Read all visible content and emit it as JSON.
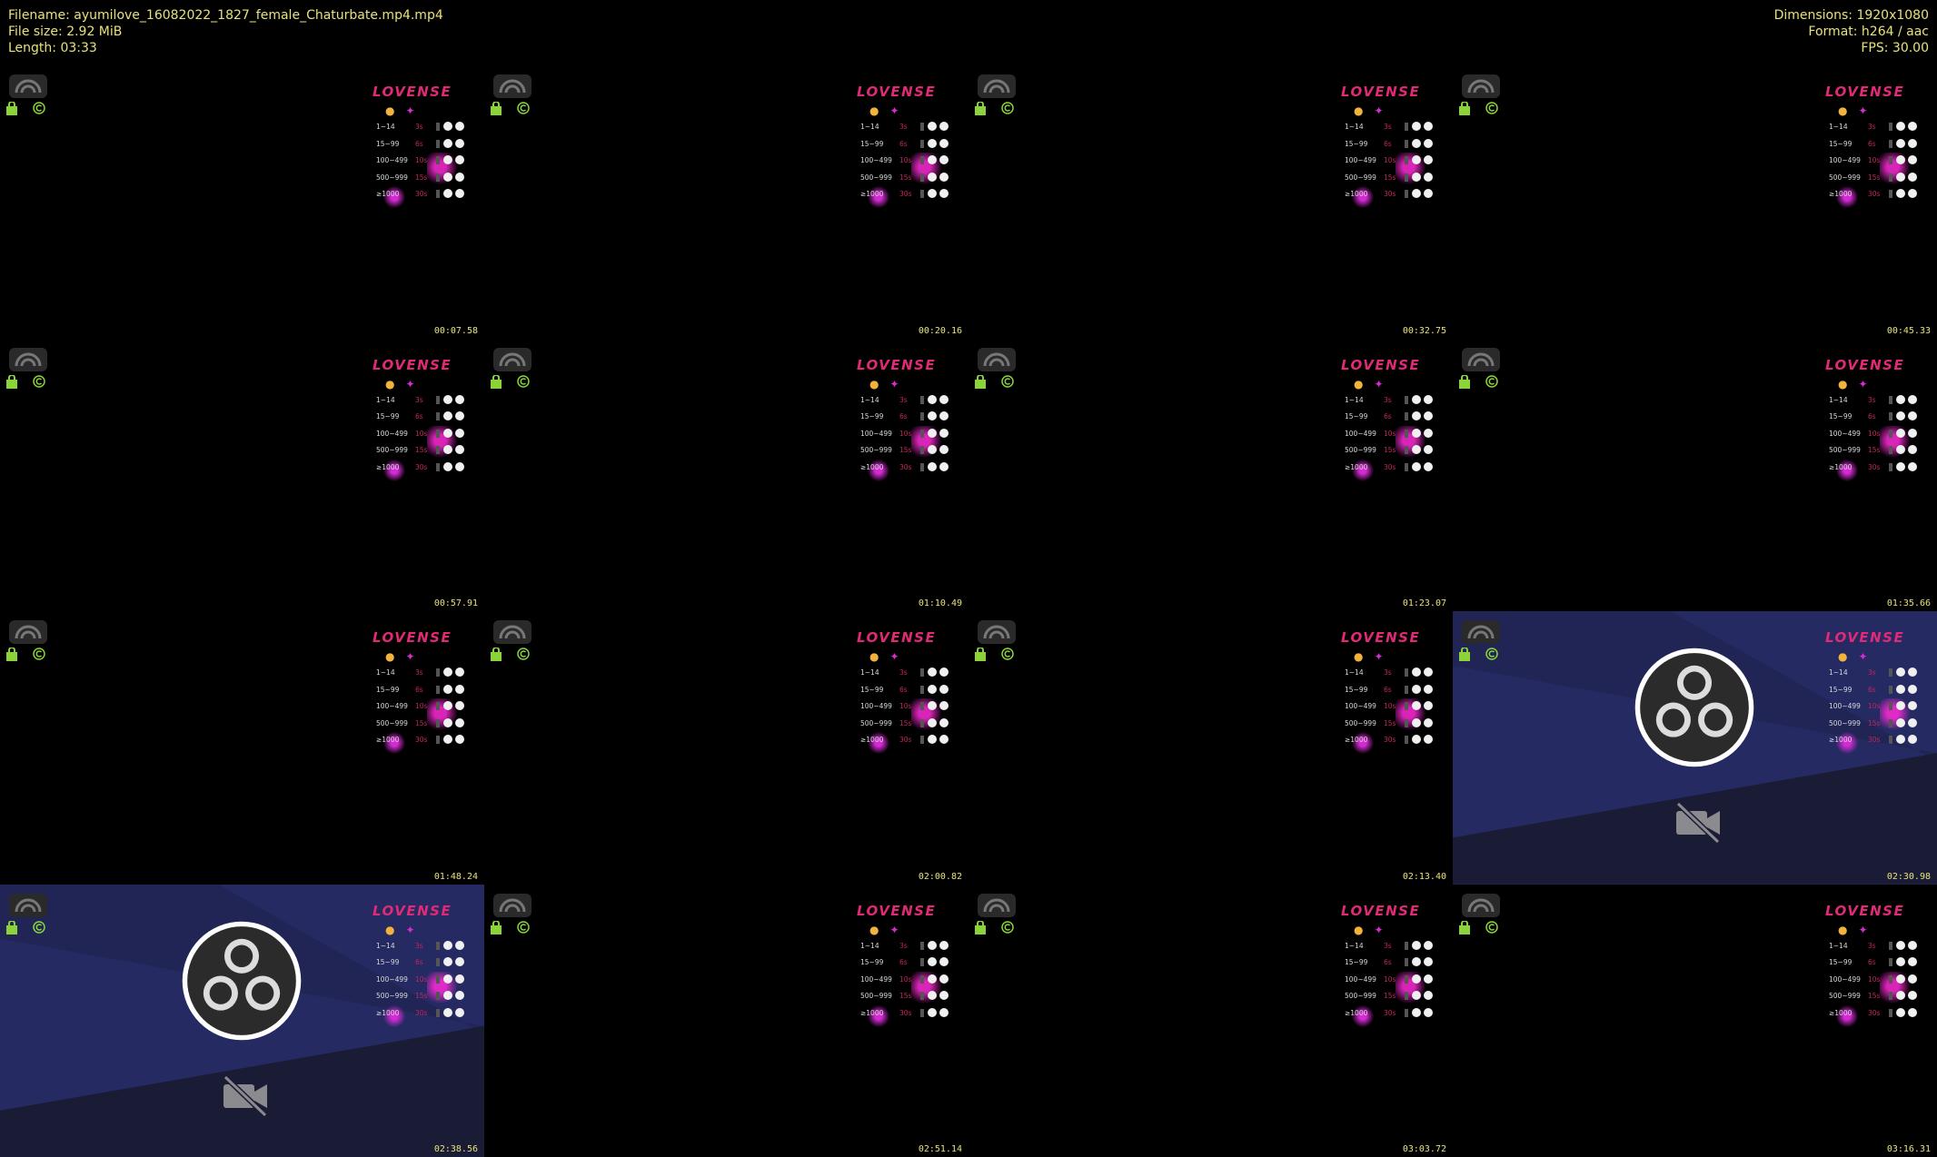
{
  "header": {
    "left": [
      "Filename: ayumilove_16082022_1827_female_Chaturbate.mp4.mp4",
      "File size: 2.92 MiB",
      "Length: 03:33"
    ],
    "right": [
      "Dimensions: 1920x1080",
      "Format: h264 / aac",
      "FPS: 30.00"
    ]
  },
  "colors": {
    "timestamp": "#e8e27a",
    "lovense_pink": "#e02a75",
    "obs_blue": "#252a63",
    "obs_dark": "#1a1b34"
  },
  "lovense": {
    "title": "LOVENSE",
    "levels": [
      {
        "range": "1~14",
        "duration": "3s"
      },
      {
        "range": "15~99",
        "duration": "6s"
      },
      {
        "range": "100~499",
        "duration": "10s"
      },
      {
        "range": "500~999",
        "duration": "15s"
      },
      {
        "range": "≥1000",
        "duration": "30s"
      }
    ]
  },
  "thumbnails": [
    {
      "time": "00:07.58",
      "obs": false
    },
    {
      "time": "00:20.16",
      "obs": false
    },
    {
      "time": "00:32.75",
      "obs": false
    },
    {
      "time": "00:45.33",
      "obs": false
    },
    {
      "time": "00:57.91",
      "obs": false
    },
    {
      "time": "01:10.49",
      "obs": false
    },
    {
      "time": "01:23.07",
      "obs": false
    },
    {
      "time": "01:35.66",
      "obs": false
    },
    {
      "time": "01:48.24",
      "obs": false
    },
    {
      "time": "02:00.82",
      "obs": false
    },
    {
      "time": "02:13.40",
      "obs": false
    },
    {
      "time": "02:30.98",
      "obs": true
    },
    {
      "time": "02:38.56",
      "obs": true
    },
    {
      "time": "02:51.14",
      "obs": false
    },
    {
      "time": "03:03.72",
      "obs": false
    },
    {
      "time": "03:16.31",
      "obs": false
    }
  ]
}
